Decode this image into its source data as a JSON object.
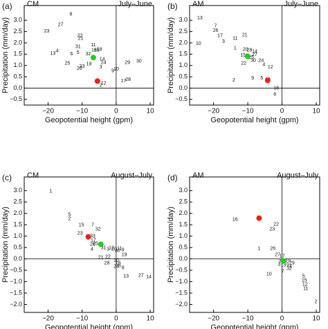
{
  "chart_data": [
    {
      "type": "scatter",
      "panel_label": "(a)",
      "title": "CM",
      "subtitle": "July–June",
      "x_label": "Geopotential height (gpm)",
      "y_label": "Precipitation (mm/day)",
      "xlim": [
        -27,
        11
      ],
      "ylim": [
        -0.75,
        3.65
      ],
      "xticks": [
        {
          "value": -20,
          "label": "−20"
        },
        {
          "value": -10,
          "label": "−10"
        },
        0,
        10
      ],
      "yticks": [
        {
          "value": -0.5,
          "label": "−0.5"
        },
        {
          "value": 0,
          "label": "0.0"
        },
        0.5,
        {
          "value": 1,
          "label": "1.0"
        },
        1.5,
        {
          "value": 2,
          "label": "2.0"
        },
        2.5,
        {
          "value": 3,
          "label": "3.0"
        }
      ],
      "point_labels": [
        "8",
        "27",
        "23",
        "22",
        "21",
        "11",
        "31",
        "5",
        "13",
        "4",
        "16",
        "6",
        "32",
        "15",
        "25",
        "19",
        "33",
        "26",
        "14",
        "24",
        "3",
        "29",
        "30",
        "10",
        "9",
        "2",
        "12",
        "17",
        "28",
        "18"
      ],
      "x": [
        -13.3,
        -16.3,
        -20.4,
        -10.6,
        -10.4,
        -6.7,
        -11.2,
        -11.2,
        -18.6,
        -17.3,
        -6.5,
        -13.1,
        -8.2,
        -5.7,
        -14.3,
        -8,
        -10,
        -10.8,
        -4.1,
        -3.7,
        -4.5,
        3.3,
        6.7,
        0,
        -1,
        -4.5,
        -3.7,
        2.2,
        3.5,
        -4.9
      ],
      "values": [
        3.27,
        2.81,
        2.51,
        2.32,
        2.2,
        1.9,
        1.83,
        1.56,
        1.53,
        1.65,
        1.68,
        1.5,
        1.5,
        1.68,
        1.1,
        1.07,
        0.95,
        0.86,
        1.28,
        1.13,
        0.92,
        1.13,
        1.19,
        0.83,
        0.76,
        0.12,
        0.21,
        0.31,
        0.37,
        1.71
      ],
      "highlights": [
        {
          "color": "#22cc22",
          "x": -6.7,
          "y": 1.35
        },
        {
          "color": "#ee2211",
          "x": -5.5,
          "y": 0.31
        }
      ]
    },
    {
      "type": "scatter",
      "panel_label": "(b)",
      "title": "AM",
      "subtitle": "July–June",
      "x_label": "Geopotential height (gpm)",
      "y_label": "Precipitation (mm/day)",
      "xlim": [
        -27,
        11
      ],
      "ylim": [
        -0.75,
        3.65
      ],
      "xticks": [
        {
          "value": -20,
          "label": "−20"
        },
        {
          "value": -10,
          "label": "−10"
        },
        0,
        10
      ],
      "yticks": [
        {
          "value": -0.5,
          "label": "−0.5"
        },
        {
          "value": 0,
          "label": "0.0"
        },
        0.5,
        {
          "value": 1,
          "label": "1.0"
        },
        1.5,
        {
          "value": 2,
          "label": "2.0"
        },
        2.5,
        {
          "value": 3,
          "label": "3.0"
        }
      ],
      "point_labels": [
        "13",
        "7",
        "26",
        "17",
        "3",
        "10",
        "21",
        "11",
        "1",
        "20",
        "28",
        "14",
        "15",
        "27",
        "25",
        "22",
        "30",
        "24",
        "4",
        "12",
        "2",
        "9",
        "5",
        "19",
        "18",
        "8"
      ],
      "x": [
        -24,
        -19.4,
        -19.4,
        -18.1,
        -17.1,
        -24.4,
        -10.9,
        -13.7,
        -13.7,
        -10.7,
        -9.5,
        -8,
        -11.4,
        -8,
        -9,
        -11.2,
        -8.4,
        -6.1,
        -5.3,
        -3.4,
        -14.1,
        -8.6,
        -5.9,
        -4.2,
        -1.7,
        -2.1
      ],
      "values": [
        3.09,
        2.75,
        2.54,
        2.32,
        2.05,
        1.96,
        2.35,
        2.2,
        1.77,
        1.71,
        1.68,
        1.62,
        1.44,
        1.47,
        1.35,
        1.1,
        1.22,
        1.22,
        1.04,
        0.92,
        0.34,
        0.43,
        0.43,
        0.37,
        0,
        -0.28
      ],
      "highlights": [
        {
          "color": "#22cc22",
          "x": -10.1,
          "y": 1.41
        },
        {
          "color": "#ee2211",
          "x": -4.2,
          "y": 0.34
        }
      ]
    },
    {
      "type": "scatter",
      "panel_label": "(c)",
      "title": "CM",
      "subtitle": "August–July",
      "x_label": "Geopotential height (gpm)",
      "y_label": "Precipitation (mm/day)",
      "xlim": [
        -27,
        11
      ],
      "ylim": [
        -2.35,
        3.6
      ],
      "xticks": [
        {
          "value": -20,
          "label": "−20"
        },
        {
          "value": -10,
          "label": "−10"
        },
        0,
        10
      ],
      "yticks": [
        {
          "value": -2,
          "label": "−2.0"
        },
        {
          "value": -1.5,
          "label": "−1.5"
        },
        {
          "value": -1,
          "label": "−1.0"
        },
        {
          "value": -0.5,
          "label": "−0.5"
        },
        {
          "value": 0,
          "label": "0.0"
        },
        0.5,
        {
          "value": 1,
          "label": "1.0"
        },
        1.5,
        {
          "value": 2,
          "label": "2.0"
        },
        2.5,
        {
          "value": 3,
          "label": "3.0"
        }
      ],
      "point_labels": [
        "1",
        "5",
        "2",
        "15",
        "7",
        "23",
        "32",
        "33",
        "17",
        "26",
        "4",
        "25",
        "31",
        "3",
        "12",
        "20",
        "30",
        "11",
        "9",
        "19",
        "21",
        "22",
        "28",
        "10",
        "24",
        "16",
        "6",
        "8",
        "13",
        "27",
        "14"
      ],
      "x": [
        -19.2,
        -13.7,
        -13.7,
        -10.2,
        -6.9,
        -10.6,
        -5.3,
        -6.9,
        -6.7,
        -6.9,
        -7.1,
        -6.1,
        -3.7,
        -2.4,
        -1.4,
        -0.6,
        0.4,
        1,
        2,
        2.4,
        -4.5,
        -2.4,
        -2.7,
        0,
        0,
        0.6,
        1,
        2,
        2.9,
        7.3,
        9.6
      ],
      "values": [
        2.97,
        1.94,
        1.76,
        1.48,
        1.48,
        1.12,
        1.3,
        1,
        0.82,
        0.64,
        0.42,
        0.67,
        0.48,
        0.42,
        0.48,
        0.42,
        0.36,
        0.45,
        0.39,
        0.18,
        0.06,
        0.09,
        -0.18,
        -0.06,
        -0.33,
        -0.18,
        -0.3,
        -0.39,
        -0.76,
        -0.73,
        -0.79
      ],
      "highlights": [
        {
          "color": "#22cc22",
          "x": -4.5,
          "y": 0.64
        },
        {
          "color": "#ee2211",
          "x": -8.2,
          "y": 0.97
        }
      ]
    },
    {
      "type": "scatter",
      "panel_label": "(d)",
      "title": "AM",
      "subtitle": "August–July",
      "x_label": "Geopotential height (gpm)",
      "y_label": "Precipitation (mm/day)",
      "xlim": [
        -27,
        11
      ],
      "ylim": [
        -2.35,
        3.6
      ],
      "xticks": [
        {
          "value": -20,
          "label": "−20"
        },
        {
          "value": -10,
          "label": "−10"
        },
        0,
        10
      ],
      "yticks": [
        {
          "value": -2,
          "label": "−2.0"
        },
        {
          "value": -1.5,
          "label": "−1.5"
        },
        {
          "value": -1,
          "label": "−1.0"
        },
        {
          "value": -0.5,
          "label": "−0.5"
        },
        {
          "value": 0,
          "label": "0.0"
        },
        0.5,
        {
          "value": 1,
          "label": "1.0"
        },
        1.5,
        {
          "value": 2,
          "label": "2.0"
        },
        2.5,
        {
          "value": 3,
          "label": "3.0"
        }
      ],
      "point_labels": [
        "16",
        "22",
        "23",
        "1",
        "26",
        "27",
        "17",
        "31",
        "19",
        "29",
        "3",
        "13",
        "9",
        "32",
        "4",
        "10",
        "7",
        "5",
        "15",
        "12",
        "11",
        "2"
      ],
      "x": [
        -13.7,
        -1.7,
        -2.9,
        -6.7,
        -2.7,
        -1.3,
        0,
        -0.2,
        1.7,
        2.9,
        -0.8,
        0.4,
        1.7,
        2.1,
        2.5,
        -3.8,
        0.2,
        6.3,
        6.5,
        6.7,
        6.9,
        9.9
      ],
      "values": [
        1.73,
        1.52,
        1.3,
        0.45,
        0.45,
        0.18,
        0.12,
        -0.09,
        -0.09,
        -0.18,
        -0.24,
        -0.27,
        -0.27,
        -0.42,
        -0.33,
        -0.67,
        -0.55,
        -0.76,
        -0.94,
        -1.12,
        -1.3,
        -1.88
      ],
      "highlights": [
        {
          "color": "#22cc22",
          "x": 0.4,
          "y": -0.09
        },
        {
          "color": "#ee2211",
          "x": -6.7,
          "y": 1.79
        }
      ]
    }
  ]
}
